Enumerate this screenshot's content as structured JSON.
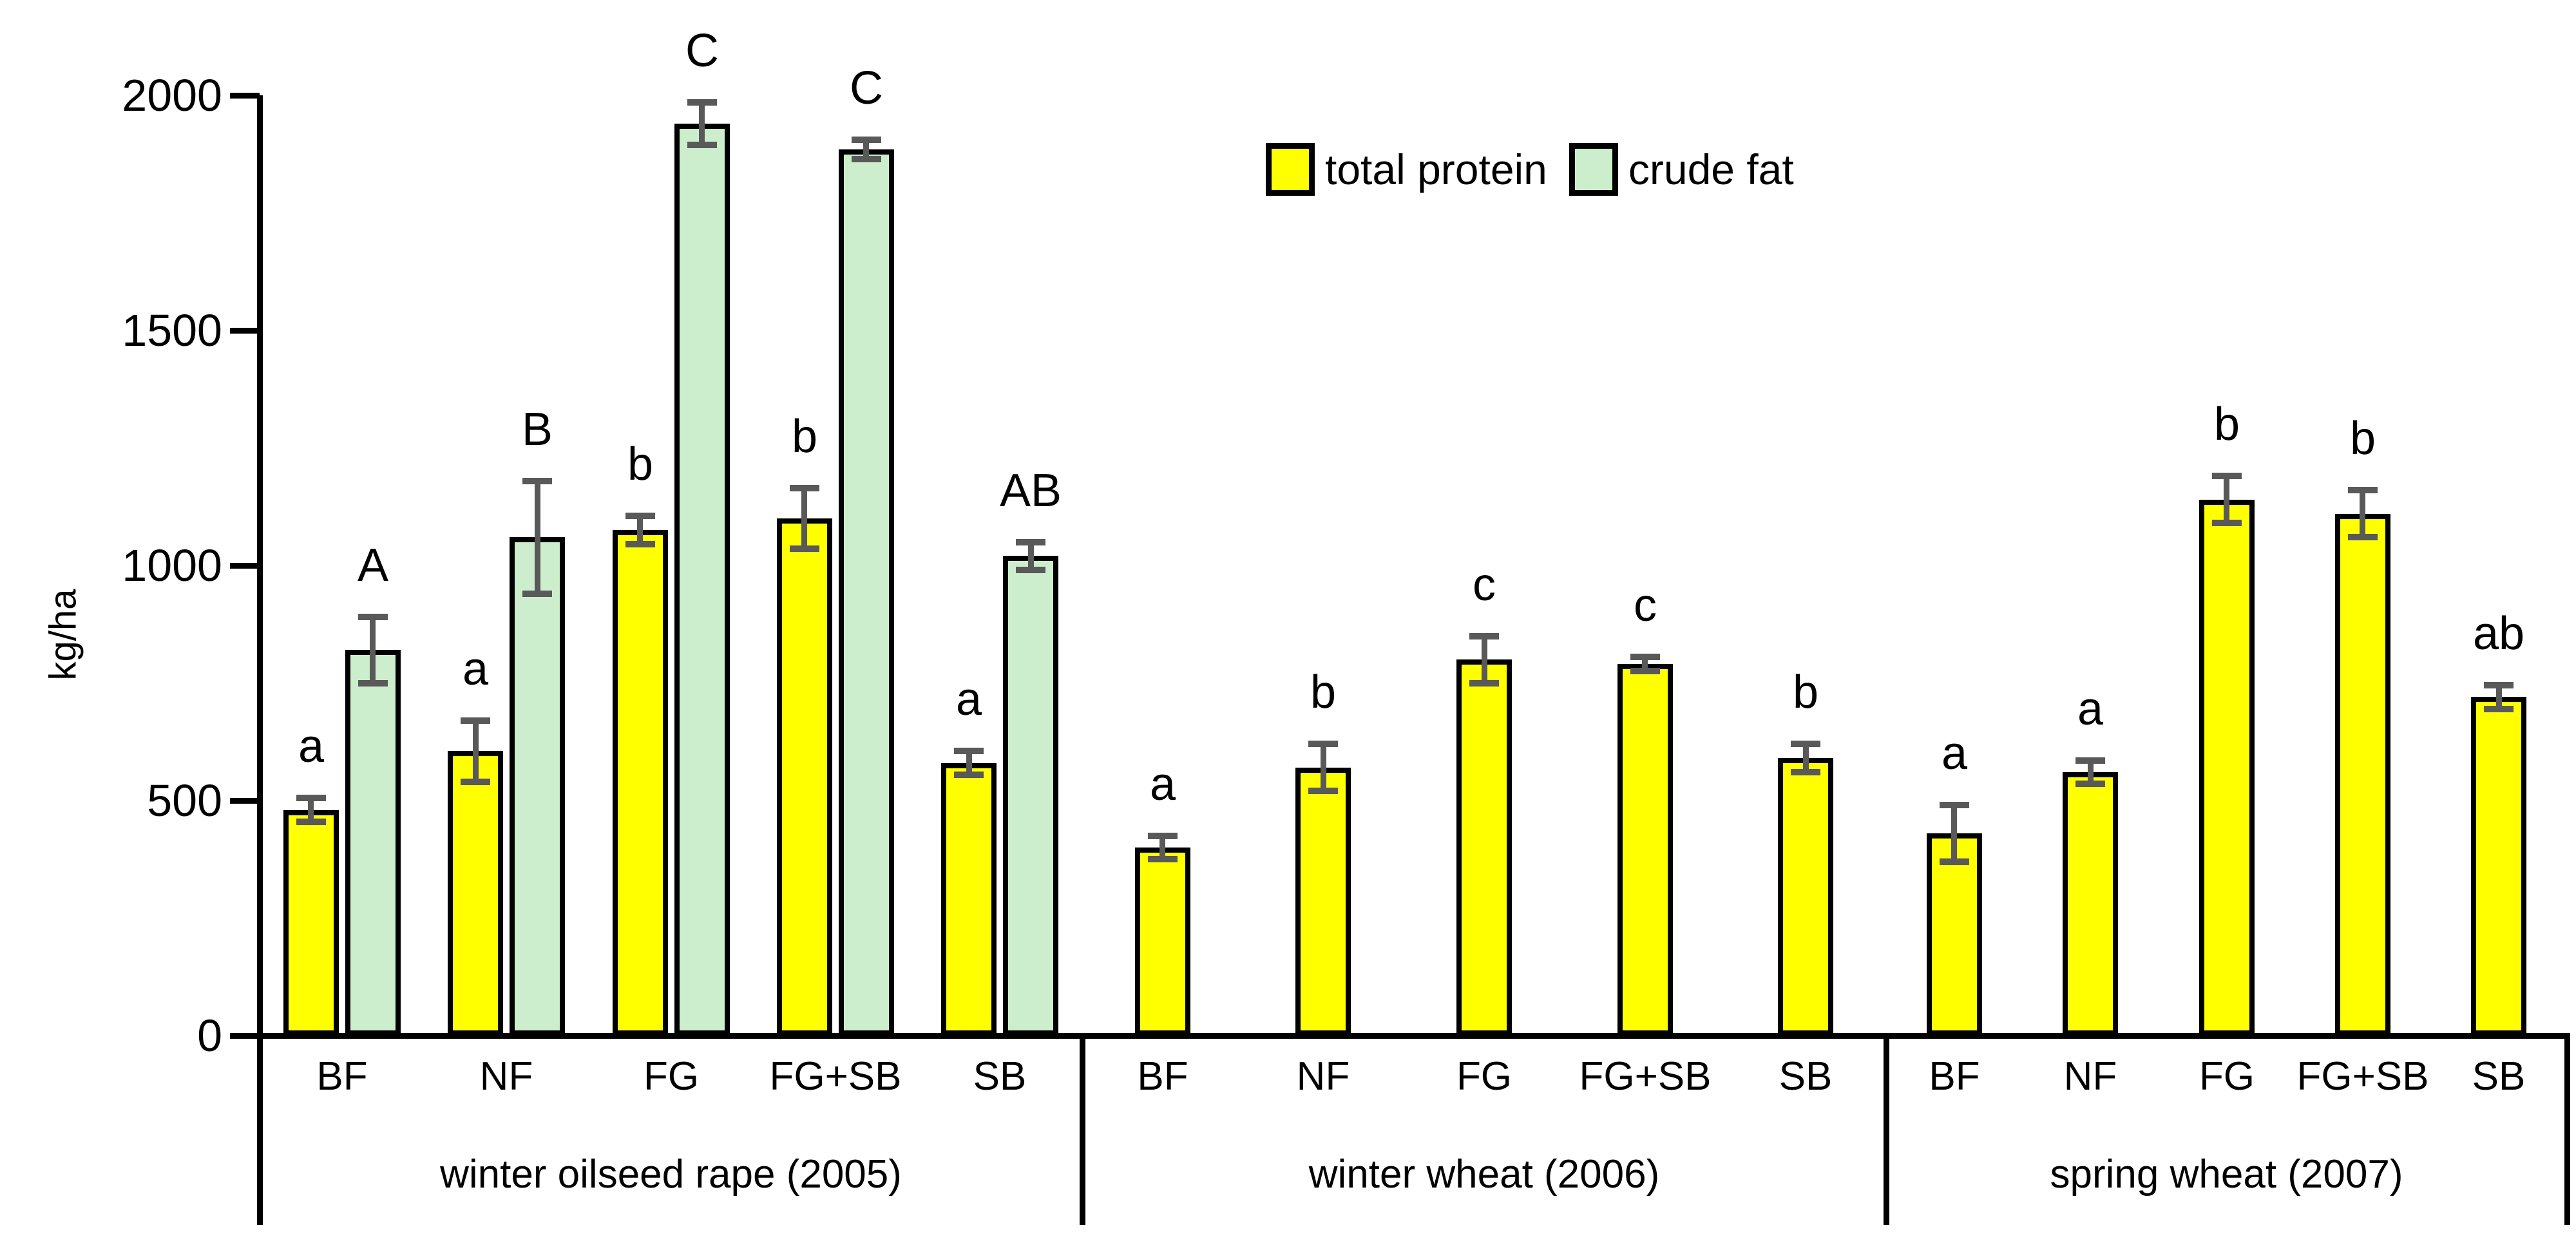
{
  "y_axis": {
    "label": "kg/ha",
    "ticks": [
      2000,
      1500,
      1000,
      500,
      0
    ],
    "max": 2000
  },
  "legend": [
    {
      "label": "total protein",
      "color": "#FFFF00"
    },
    {
      "label": "crude fat",
      "color": "#CDEECD"
    }
  ],
  "chart_data": {
    "type": "bar",
    "title": "",
    "xlabel": "",
    "ylabel": "kg/ha",
    "ylim": [
      0,
      2000
    ],
    "grid": false,
    "legend_position": "top-center",
    "categories": [
      "BF",
      "NF",
      "FG",
      "FG+SB",
      "SB"
    ],
    "groups": [
      {
        "label": "winter oilseed rape (2005)",
        "series": [
          {
            "name": "total protein",
            "color": "#FFFF00",
            "values": [
              480,
              605,
              1075,
              1100,
              580
            ],
            "errors": [
              25,
              65,
              30,
              65,
              25
            ],
            "letters": [
              "a",
              "a",
              "b",
              "b",
              "a"
            ]
          },
          {
            "name": "crude fat",
            "color": "#CDEECD",
            "values": [
              820,
              1060,
              1940,
              1885,
              1020
            ],
            "errors": [
              70,
              120,
              45,
              20,
              30
            ],
            "letters": [
              "A",
              "B",
              "C",
              "C",
              "AB"
            ]
          }
        ]
      },
      {
        "label": "winter wheat (2006)",
        "series": [
          {
            "name": "total protein",
            "color": "#FFFF00",
            "values": [
              400,
              570,
              800,
              790,
              590
            ],
            "errors": [
              25,
              50,
              50,
              15,
              30
            ],
            "letters": [
              "a",
              "b",
              "c",
              "c",
              "b"
            ]
          }
        ]
      },
      {
        "label": "spring wheat (2007)",
        "series": [
          {
            "name": "total protein",
            "color": "#FFFF00",
            "values": [
              430,
              560,
              1140,
              1110,
              720
            ],
            "errors": [
              60,
              25,
              50,
              50,
              25
            ],
            "letters": [
              "a",
              "a",
              "b",
              "b",
              "ab"
            ]
          }
        ]
      }
    ]
  }
}
